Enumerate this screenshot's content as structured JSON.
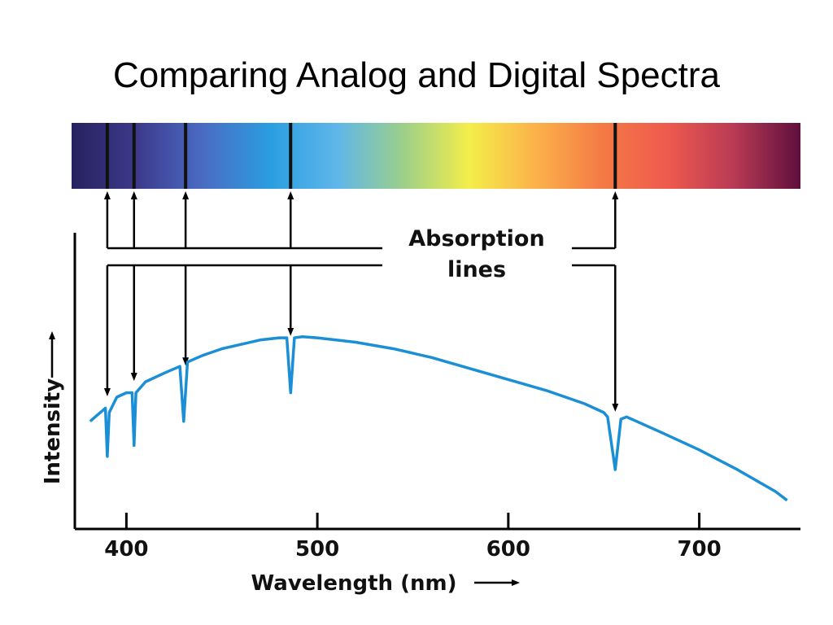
{
  "slide": {
    "title": "Comparing Analog and Digital Spectra"
  },
  "annotation": {
    "line1": "Absorption",
    "line2": "lines"
  },
  "colors": {
    "curve": "#1a8fd6",
    "axis": "#000000",
    "spectrum_stops": [
      "#26215e",
      "#3d3a8c",
      "#4a6cc4",
      "#2a9ee0",
      "#5fb6ea",
      "#9ccf8a",
      "#f4ee4a",
      "#fbb24a",
      "#f47a45",
      "#ee5a4e",
      "#b83a55",
      "#5e0f3c"
    ]
  },
  "chart_data": {
    "type": "line",
    "title": "",
    "xlabel": "Wavelength (nm)",
    "ylabel": "Intensity",
    "xlim": [
      373,
      753
    ],
    "ylim": [
      0,
      1
    ],
    "x_ticks": [
      400,
      500,
      600,
      700
    ],
    "x_tick_labels": [
      "400",
      "500",
      "600",
      "700"
    ],
    "grid": false,
    "absorption_lines_nm": [
      390,
      404,
      431,
      486,
      656
    ],
    "series": [
      {
        "values": [
          [
            381,
            0.49
          ],
          [
            385,
            0.52
          ],
          [
            389,
            0.55
          ],
          [
            390,
            0.33
          ],
          [
            391,
            0.53
          ],
          [
            395,
            0.6
          ],
          [
            400,
            0.62
          ],
          [
            403,
            0.62
          ],
          [
            404,
            0.38
          ],
          [
            405,
            0.62
          ],
          [
            410,
            0.67
          ],
          [
            420,
            0.71
          ],
          [
            428,
            0.74
          ],
          [
            430,
            0.49
          ],
          [
            432,
            0.76
          ],
          [
            440,
            0.79
          ],
          [
            450,
            0.82
          ],
          [
            460,
            0.84
          ],
          [
            470,
            0.86
          ],
          [
            480,
            0.87
          ],
          [
            484,
            0.87
          ],
          [
            486,
            0.62
          ],
          [
            488,
            0.87
          ],
          [
            492,
            0.875
          ],
          [
            500,
            0.87
          ],
          [
            520,
            0.85
          ],
          [
            540,
            0.82
          ],
          [
            560,
            0.78
          ],
          [
            580,
            0.73
          ],
          [
            600,
            0.68
          ],
          [
            620,
            0.63
          ],
          [
            640,
            0.57
          ],
          [
            650,
            0.53
          ],
          [
            652,
            0.51
          ],
          [
            656,
            0.27
          ],
          [
            659,
            0.5
          ],
          [
            662,
            0.51
          ],
          [
            680,
            0.44
          ],
          [
            700,
            0.36
          ],
          [
            720,
            0.27
          ],
          [
            740,
            0.17
          ],
          [
            746,
            0.13
          ]
        ]
      }
    ]
  }
}
